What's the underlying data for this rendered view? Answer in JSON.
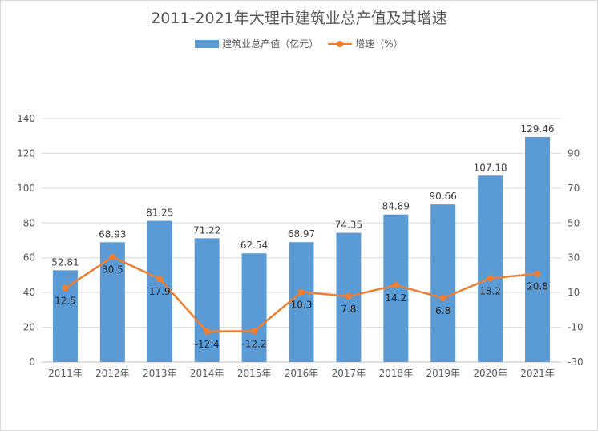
{
  "chart_data": {
    "type": "bar",
    "title": "2011-2021年大理市建筑业总产值及其增速",
    "categories": [
      "2011年",
      "2012年",
      "2013年",
      "2014年",
      "2015年",
      "2016年",
      "2017年",
      "2018年",
      "2019年",
      "2020年",
      "2021年"
    ],
    "series": [
      {
        "name": "建筑业总产值（亿元）",
        "type": "bar",
        "axis": "left",
        "color": "#5b9bd5",
        "values": [
          52.81,
          68.93,
          81.25,
          71.22,
          62.54,
          68.97,
          74.35,
          84.89,
          90.66,
          107.18,
          129.46
        ],
        "labels": [
          "52.81",
          "68.93",
          "81.25",
          "71.22",
          "62.54",
          "68.97",
          "74.35",
          "84.89",
          "90.66",
          "107.18",
          "129.46"
        ]
      },
      {
        "name": "增速（%）",
        "type": "line",
        "axis": "right",
        "color": "#ed7d31",
        "values": [
          12.5,
          30.5,
          17.9,
          -12.4,
          -12.2,
          10.3,
          7.8,
          14.2,
          6.8,
          18.2,
          20.8
        ],
        "labels": [
          "12.5",
          "30.5",
          "17.9",
          "-12.4",
          "-12.2",
          "10.3",
          "7.8",
          "14.2",
          "6.8",
          "18.2",
          "20.8"
        ]
      }
    ],
    "y_left": {
      "ylim": [
        0,
        140
      ],
      "ticks": [
        "0",
        "20",
        "40",
        "60",
        "80",
        "100",
        "120",
        "140"
      ]
    },
    "y_right": {
      "ylim": [
        -30,
        110
      ],
      "ticks": [
        "-30",
        "-10",
        "10",
        "30",
        "50",
        "70",
        "90"
      ]
    },
    "grid": true,
    "legend_position": "top"
  },
  "legend": {
    "bar_label": "建筑业总产值（亿元）",
    "line_label": "增速（%）"
  }
}
